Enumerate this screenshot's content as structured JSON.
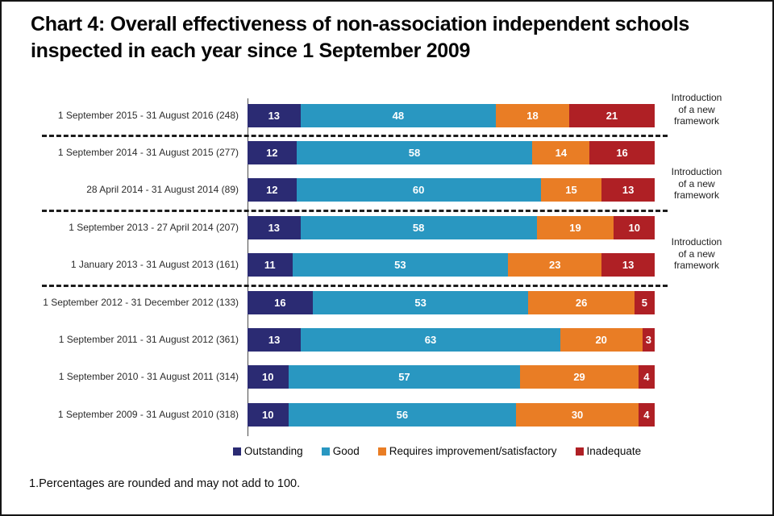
{
  "title": {
    "line1": "Chart 4: Overall effectiveness of non-association independent schools",
    "line2": "inspected in each year since 1 September 2009"
  },
  "footnote": "1.Percentages are rounded and may not add to 100.",
  "chart_data": {
    "type": "bar",
    "subtype": "horizontal-100-percent-stacked",
    "title": "Chart 4: Overall effectiveness of non-association independent schools inspected in each year since 1 September 2009",
    "xlabel": "",
    "ylabel": "",
    "xlim": [
      0,
      100
    ],
    "grid": false,
    "legend_position": "bottom-center",
    "value_labels": "inside-segments-white",
    "categories": [
      "1 September 2015 - 31 August 2016 (248)",
      "1 September 2014 - 31 August 2015 (277)",
      "28 April 2014 - 31 August 2014 (89)",
      "1 September 2013 - 27 April 2014 (207)",
      "1 January 2013 - 31 August 2013 (161)",
      "1 September 2012 - 31 December 2012 (133)",
      "1 September 2011 - 31 August 2012 (361)",
      "1 September 2010 - 31 August 2011 (314)",
      "1 September 2009 - 31 August 2010 (318)"
    ],
    "series": [
      {
        "name": "Outstanding",
        "color": "#2B2B73",
        "values": [
          13,
          12,
          12,
          13,
          11,
          16,
          13,
          10,
          10
        ]
      },
      {
        "name": "Good",
        "color": "#2997C1",
        "values": [
          48,
          58,
          60,
          58,
          53,
          53,
          63,
          57,
          56
        ]
      },
      {
        "name": "Requires improvement/satisfactory",
        "color": "#E97D25",
        "values": [
          18,
          14,
          15,
          19,
          23,
          26,
          20,
          29,
          30
        ]
      },
      {
        "name": "Inadequate",
        "color": "#AF2025",
        "values": [
          21,
          16,
          13,
          10,
          13,
          5,
          3,
          4,
          4
        ]
      }
    ],
    "separators_after_rows": [
      0,
      2,
      4
    ],
    "annotations": [
      {
        "text": "Introduction\nof a new\nframework"
      },
      {
        "text": "Introduction\nof a new\nframework"
      },
      {
        "text": "Introduction\nof a new\nframework"
      }
    ]
  }
}
